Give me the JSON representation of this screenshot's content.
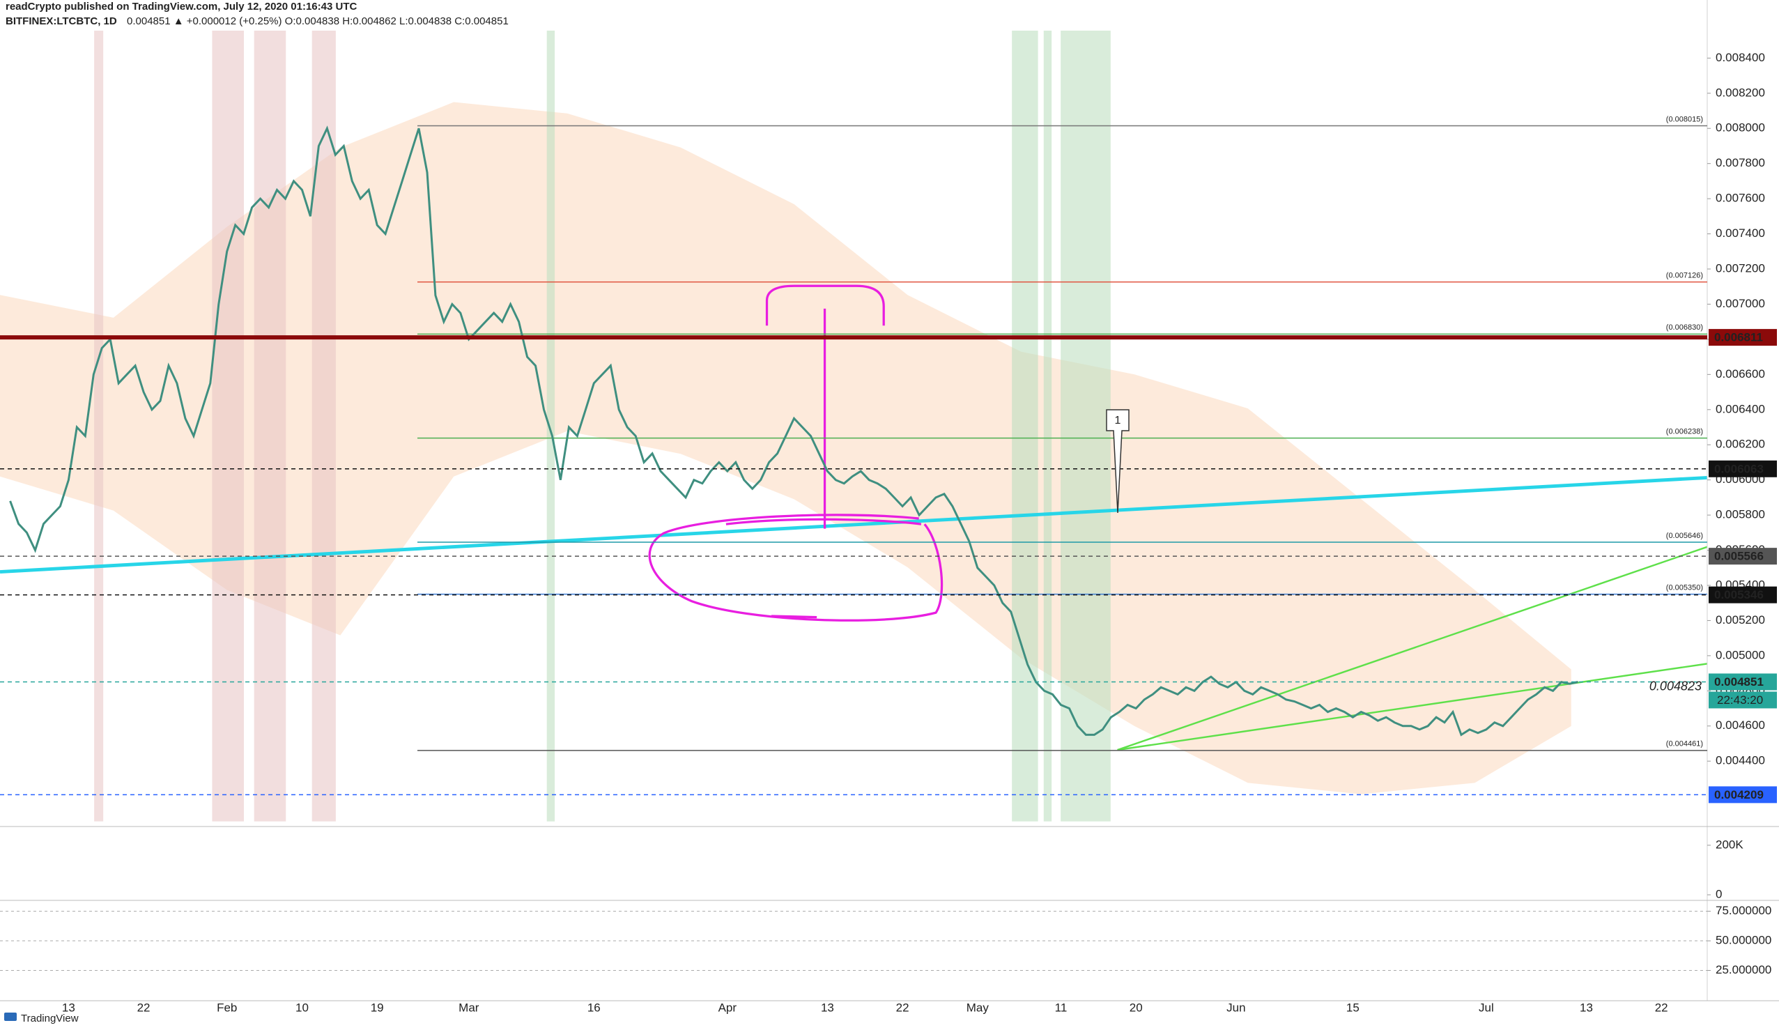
{
  "header": {
    "publisher": "readCrypto published on TradingView.com, July 12, 2020 01:16:43 UTC",
    "symbol": "BITFINEX:LTCBTC, 1D",
    "quote": "0.004851 ▲ +0.000012 (+0.25%) O:0.004838 H:0.004862 L:0.004838 C:0.004851"
  },
  "footer": {
    "brand": "TradingView"
  },
  "chart_data": [
    {
      "type": "line",
      "color": "#3f8f80",
      "categories": [
        null,
        null,
        null,
        null,
        null,
        null,
        null,
        "13",
        null,
        null,
        null,
        null,
        null,
        null,
        null,
        null,
        "22",
        null,
        null,
        null,
        null,
        null,
        null,
        null,
        null,
        null,
        "Feb",
        null,
        null,
        null,
        null,
        null,
        null,
        null,
        null,
        "10",
        null,
        null,
        null,
        null,
        null,
        null,
        null,
        null,
        "19",
        null,
        null,
        null,
        null,
        null,
        null,
        null,
        null,
        null,
        null,
        "Mar",
        null,
        null,
        null,
        null,
        null,
        null,
        null,
        null,
        null,
        null,
        null,
        null,
        null,
        null,
        "16",
        null,
        null,
        null,
        null,
        null,
        null,
        null,
        null,
        null,
        null,
        null,
        null,
        null,
        null,
        null,
        "Apr",
        null,
        null,
        null,
        null,
        null,
        null,
        null,
        null,
        null,
        null,
        null,
        "13",
        null,
        null,
        null,
        null,
        null,
        null,
        null,
        null,
        "22",
        null,
        null,
        null,
        null,
        null,
        null,
        null,
        null,
        "May",
        null,
        null,
        null,
        null,
        null,
        null,
        null,
        null,
        null,
        "11",
        null,
        null,
        null,
        null,
        null,
        null,
        null,
        null,
        "20",
        null,
        null,
        null,
        null,
        null,
        null,
        null,
        null,
        null,
        null,
        null,
        "Jun",
        null,
        null,
        null,
        null,
        null,
        null,
        null,
        null,
        null,
        null,
        null,
        null,
        null,
        "15",
        null,
        null,
        null,
        null,
        null,
        null,
        null,
        null,
        null,
        null,
        null,
        null,
        null,
        null,
        null,
        "Jul",
        null,
        null,
        null,
        null,
        null,
        null,
        null,
        null,
        null,
        null,
        null,
        "13",
        null,
        null,
        null,
        null,
        null,
        null,
        null,
        null,
        "22"
      ],
      "values": [
        0.00588,
        0.00575,
        0.0057,
        0.0056,
        0.00575,
        0.0058,
        0.00585,
        0.006,
        0.0063,
        0.00625,
        0.0066,
        0.00675,
        0.0068,
        0.00655,
        0.0066,
        0.00665,
        0.0065,
        0.0064,
        0.00645,
        0.00665,
        0.00655,
        0.00635,
        0.00625,
        0.0064,
        0.00655,
        0.007,
        0.0073,
        0.00745,
        0.0074,
        0.00755,
        0.0076,
        0.00755,
        0.00765,
        0.0076,
        0.0077,
        0.00765,
        0.0075,
        0.0079,
        0.008,
        0.00785,
        0.0079,
        0.0077,
        0.0076,
        0.00765,
        0.00745,
        0.0074,
        0.00755,
        0.0077,
        0.00785,
        0.008,
        0.00775,
        0.00705,
        0.0069,
        0.007,
        0.00695,
        0.0068,
        0.00685,
        0.0069,
        0.00695,
        0.0069,
        0.007,
        0.0069,
        0.0067,
        0.00665,
        0.0064,
        0.00625,
        0.006,
        0.0063,
        0.00625,
        0.0064,
        0.00655,
        0.0066,
        0.00665,
        0.0064,
        0.0063,
        0.00625,
        0.0061,
        0.00615,
        0.00605,
        0.006,
        0.00595,
        0.0059,
        0.006,
        0.00598,
        0.00605,
        0.0061,
        0.00605,
        0.0061,
        0.006,
        0.00595,
        0.006,
        0.0061,
        0.00615,
        0.00625,
        0.00635,
        0.0063,
        0.00625,
        0.00615,
        0.00605,
        0.006,
        0.00598,
        0.00602,
        0.00605,
        0.006,
        0.00598,
        0.00595,
        0.0059,
        0.00585,
        0.0059,
        0.0058,
        0.00585,
        0.0059,
        0.00592,
        0.00585,
        0.00575,
        0.00565,
        0.0055,
        0.00545,
        0.0054,
        0.0053,
        0.00525,
        0.0051,
        0.00495,
        0.00485,
        0.0048,
        0.00478,
        0.00472,
        0.0047,
        0.0046,
        0.00455,
        0.00455,
        0.00458,
        0.00465,
        0.00468,
        0.00472,
        0.0047,
        0.00475,
        0.00478,
        0.00482,
        0.0048,
        0.00478,
        0.00482,
        0.0048,
        0.00485,
        0.00488,
        0.00484,
        0.00482,
        0.00485,
        0.0048,
        0.00478,
        0.00482,
        0.0048,
        0.00478,
        0.00475,
        0.00474,
        0.00472,
        0.0047,
        0.00472,
        0.00468,
        0.0047,
        0.00468,
        0.00465,
        0.00468,
        0.00466,
        0.00463,
        0.00465,
        0.00462,
        0.0046,
        0.0046,
        0.00458,
        0.0046,
        0.00465,
        0.00462,
        0.00468,
        0.00455,
        0.00458,
        0.00456,
        0.00458,
        0.00462,
        0.0046,
        0.00465,
        0.0047,
        0.00475,
        0.00478,
        0.00482,
        0.0048,
        0.00485,
        0.00484,
        0.004851,
        null,
        null,
        null,
        null,
        null,
        null,
        null,
        null,
        null,
        null
      ],
      "ylim": [
        0.00404,
        0.00856
      ],
      "yticks": [
        {
          "value": 0.0044,
          "label": "0.004400"
        },
        {
          "value": 0.0046,
          "label": "0.004600"
        },
        {
          "value": 0.0048,
          "label": "0.004800"
        },
        {
          "value": 0.005,
          "label": "0.005000"
        },
        {
          "value": 0.0052,
          "label": "0.005200"
        },
        {
          "value": 0.0054,
          "label": "0.005400"
        },
        {
          "value": 0.0056,
          "label": "0.005600"
        },
        {
          "value": 0.0058,
          "label": "0.005800"
        },
        {
          "value": 0.006,
          "label": "0.006000"
        },
        {
          "value": 0.0062,
          "label": "0.006200"
        },
        {
          "value": 0.0064,
          "label": "0.006400"
        },
        {
          "value": 0.0066,
          "label": "0.006600"
        },
        {
          "value": 0.0068,
          "label": "0.006800"
        },
        {
          "value": 0.007,
          "label": "0.007000"
        },
        {
          "value": 0.0072,
          "label": "0.007200"
        },
        {
          "value": 0.0074,
          "label": "0.007400"
        },
        {
          "value": 0.0076,
          "label": "0.007600"
        },
        {
          "value": 0.0078,
          "label": "0.007800"
        },
        {
          "value": 0.008,
          "label": "0.008000"
        },
        {
          "value": 0.0082,
          "label": "0.008200"
        },
        {
          "value": 0.0084,
          "label": "0.008400"
        }
      ],
      "levels": [
        {
          "value": 0.008015,
          "label": "(0.008015)",
          "color": "#777777"
        },
        {
          "value": 0.007126,
          "label": "(0.007126)",
          "color": "#e0533f"
        },
        {
          "value": 0.00683,
          "label": "(0.006830)",
          "color": "#4caf50"
        },
        {
          "value": 0.006238,
          "label": "(0.006238)",
          "color": "#4caf50"
        },
        {
          "value": 0.005646,
          "label": "(0.005646)",
          "color": "#1f9aa8"
        },
        {
          "value": 0.00535,
          "label": "(0.005350)",
          "color": "#3f7fd6"
        },
        {
          "value": 0.004461,
          "label": "(0.004461)",
          "color": "#555555"
        }
      ],
      "price_tags": [
        {
          "value": 0.006811,
          "color": "#8b0a0a"
        },
        {
          "value": 0.006063,
          "color": "#111111"
        },
        {
          "value": 0.005566,
          "color": "#555555"
        },
        {
          "value": 0.005346,
          "color": "#111111"
        },
        {
          "value": 0.004851,
          "color": "#26a69a"
        },
        {
          "value": 0.004209,
          "color": "#2962ff"
        }
      ],
      "countdown": "22:43:20",
      "price_note": 0.004823,
      "callout": "1"
    },
    {
      "type": "bar",
      "ylim": [
        0,
        270000
      ],
      "yticks": [
        {
          "value": 200000,
          "label": "200K"
        },
        0
      ]
    },
    {
      "type": "line",
      "ylim": [
        0,
        83
      ],
      "yticks": [
        {
          "value": 75,
          "label": "75.000000"
        },
        {
          "value": 50,
          "label": "50.000000"
        },
        {
          "value": 25,
          "label": "25.000000"
        }
      ]
    }
  ]
}
